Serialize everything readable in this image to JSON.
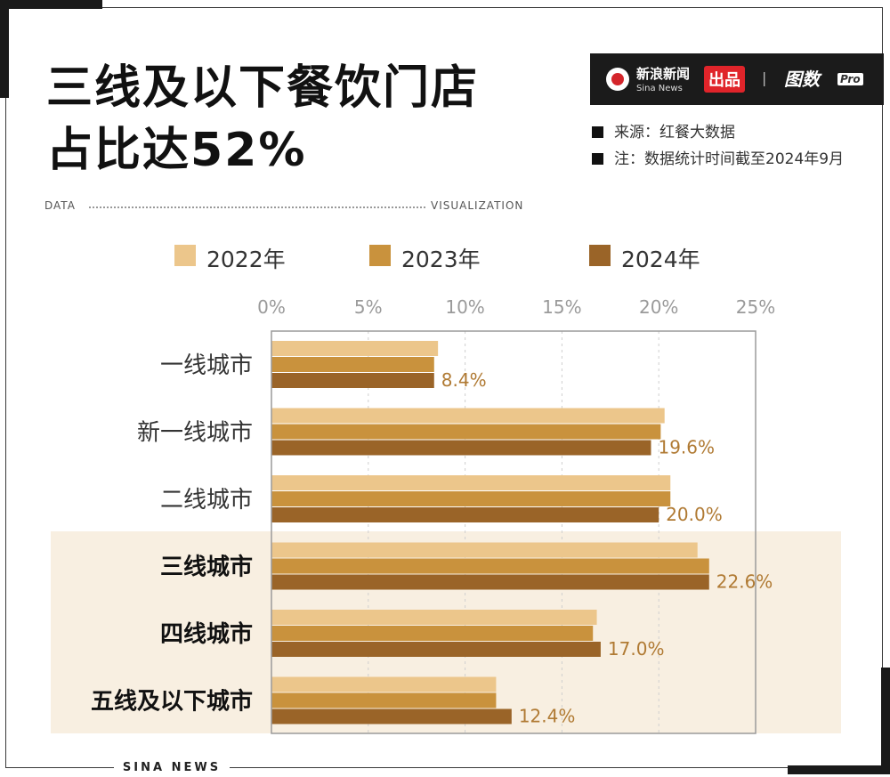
{
  "title": {
    "line1": "三线及以下餐饮门店",
    "line2": "占比达52%"
  },
  "decor": {
    "left": "DATA",
    "right": "VISUALIZATION"
  },
  "brand": {
    "name_cn": "新浪新闻",
    "name_en": "Sina News",
    "tag": "出品",
    "separator": "|",
    "product": "图数",
    "product_badge": "Pro"
  },
  "notes": [
    "来源：红餐大数据",
    "注：数据统计时间截至2024年9月"
  ],
  "footer": "SINA NEWS",
  "colors": {
    "y2022": "#ecc68b",
    "y2023": "#c9923d",
    "y2024": "#9a6428",
    "highlight": "#f8efe1",
    "label": "#b07a33"
  },
  "chart_data": {
    "type": "bar",
    "orientation": "horizontal",
    "categories": [
      "一线城市",
      "新一线城市",
      "二线城市",
      "三线城市",
      "四线城市",
      "五线及以下城市"
    ],
    "highlighted_categories": [
      "三线城市",
      "四线城市",
      "五线及以下城市"
    ],
    "series": [
      {
        "name": "2022年",
        "values": [
          8.6,
          20.3,
          20.6,
          22.0,
          16.8,
          11.6
        ]
      },
      {
        "name": "2023年",
        "values": [
          8.4,
          20.1,
          20.6,
          22.6,
          16.6,
          11.6
        ]
      },
      {
        "name": "2024年",
        "values": [
          8.4,
          19.6,
          20.0,
          22.6,
          17.0,
          12.4
        ]
      }
    ],
    "data_labels": [
      "8.4%",
      "19.6%",
      "20.0%",
      "22.6%",
      "17.0%",
      "12.4%"
    ],
    "x_ticks": [
      "0%",
      "5%",
      "10%",
      "15%",
      "20%",
      "25%"
    ],
    "xlim": [
      0,
      25
    ],
    "grid": true,
    "legend_position": "top"
  }
}
